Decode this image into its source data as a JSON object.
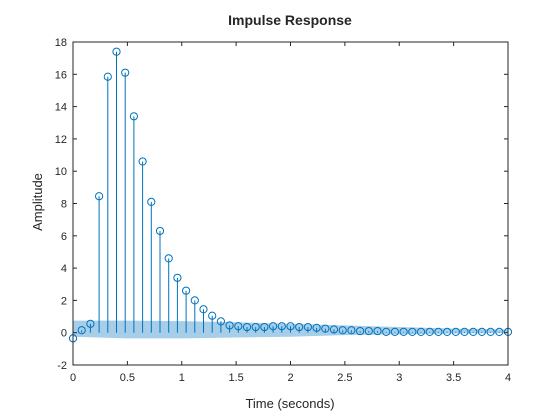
{
  "chart_data": {
    "type": "stem",
    "title": "Impulse Response",
    "xlabel": "Time (seconds)",
    "ylabel": "Amplitude",
    "xlim": [
      0,
      4
    ],
    "ylim": [
      -2,
      18
    ],
    "xticks": [
      0,
      0.5,
      1,
      1.5,
      2,
      2.5,
      3,
      3.5,
      4
    ],
    "xtick_labels": [
      "0",
      "0.5",
      "1",
      "1.5",
      "2",
      "2.5",
      "3",
      "3.5",
      "4"
    ],
    "yticks": [
      -2,
      0,
      2,
      4,
      6,
      8,
      10,
      12,
      14,
      16,
      18
    ],
    "ytick_labels": [
      "-2",
      "0",
      "2",
      "4",
      "6",
      "8",
      "10",
      "12",
      "14",
      "16",
      "18"
    ],
    "grid": false,
    "colors": {
      "stem": "#0072BD",
      "band": "#0072BD",
      "axes": "#262626"
    },
    "series": [
      {
        "x": [
          0,
          0.08,
          0.16,
          0.24,
          0.32,
          0.4,
          0.48,
          0.56,
          0.64,
          0.72,
          0.8,
          0.88,
          0.96,
          1.04,
          1.12,
          1.2,
          1.28,
          1.36,
          1.44,
          1.52,
          1.6,
          1.68,
          1.76,
          1.84,
          1.92,
          2.0,
          2.08,
          2.16,
          2.24,
          2.32,
          2.4,
          2.48,
          2.56,
          2.64,
          2.72,
          2.8,
          2.88,
          2.96,
          3.04,
          3.12,
          3.2,
          3.28,
          3.36,
          3.44,
          3.52,
          3.6,
          3.68,
          3.76,
          3.84,
          3.92,
          4.0
        ],
        "y": [
          -0.35,
          0.15,
          0.55,
          8.45,
          15.85,
          17.4,
          16.1,
          13.4,
          10.6,
          8.1,
          6.3,
          4.6,
          3.4,
          2.6,
          2.0,
          1.45,
          1.05,
          0.7,
          0.45,
          0.4,
          0.35,
          0.35,
          0.35,
          0.4,
          0.4,
          0.4,
          0.35,
          0.35,
          0.3,
          0.25,
          0.2,
          0.15,
          0.15,
          0.1,
          0.1,
          0.1,
          0.05,
          0.05,
          0.05,
          0.05,
          0.05,
          0.05,
          0.05,
          0.05,
          0.05,
          0.05,
          0.05,
          0.05,
          0.05,
          0.05,
          0.05
        ]
      }
    ],
    "confidence_band": {
      "x": [
        0,
        0.5,
        1,
        1.5,
        2,
        2.5,
        3,
        3.5,
        4
      ],
      "upper": [
        0.75,
        0.75,
        0.72,
        0.65,
        0.55,
        0.45,
        0.35,
        0.25,
        0.2
      ],
      "lower": [
        -0.25,
        -0.35,
        -0.35,
        -0.3,
        -0.25,
        -0.15,
        -0.1,
        -0.05,
        -0.02
      ]
    }
  }
}
